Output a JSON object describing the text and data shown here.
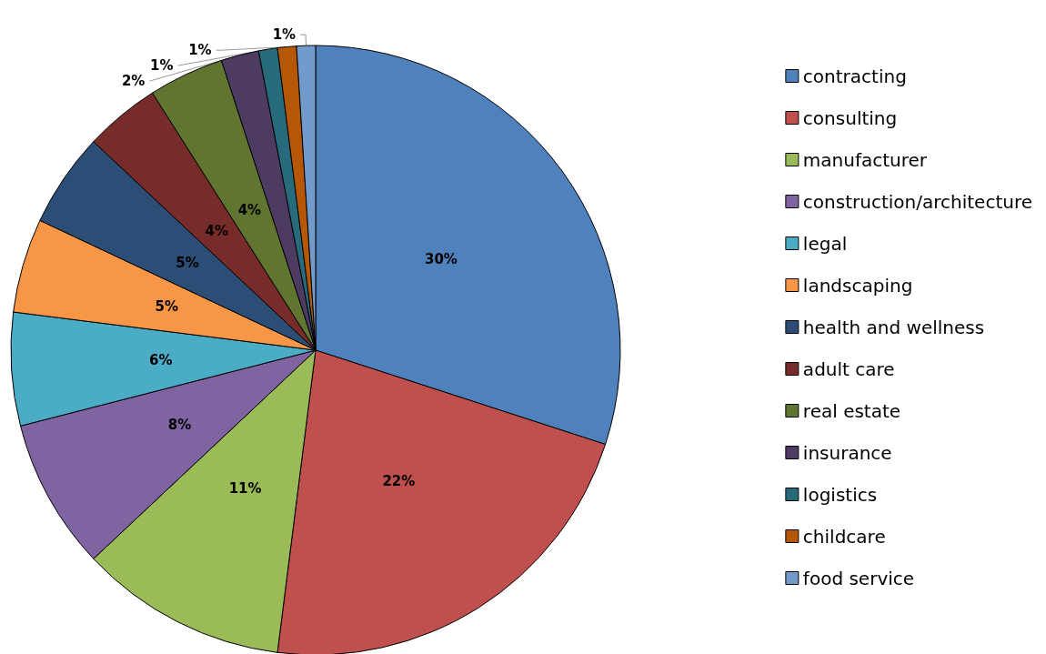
{
  "chart_data": {
    "type": "pie",
    "categories": [
      "contracting",
      "consulting",
      "manufacturer",
      "construction/architecture",
      "legal",
      "landscaping",
      "health and wellness",
      "adult care",
      "real estate",
      "insurance",
      "logistics",
      "childcare",
      "food service"
    ],
    "values": [
      30,
      22,
      11,
      8,
      6,
      5,
      5,
      4,
      4,
      2,
      1,
      1,
      1
    ],
    "value_labels": [
      "30%",
      "22%",
      "11%",
      "8%",
      "6%",
      "5%",
      "5%",
      "4%",
      "4%",
      "2%",
      "1%",
      "1%",
      "1%"
    ],
    "colors": [
      "#4f81bd",
      "#c0504d",
      "#9bbb59",
      "#8064a2",
      "#4bacc6",
      "#f79646",
      "#2c4d75",
      "#772c2a",
      "#5f7530",
      "#4d3b62",
      "#276a7c",
      "#b65708",
      "#729aca"
    ],
    "legend": "right"
  }
}
